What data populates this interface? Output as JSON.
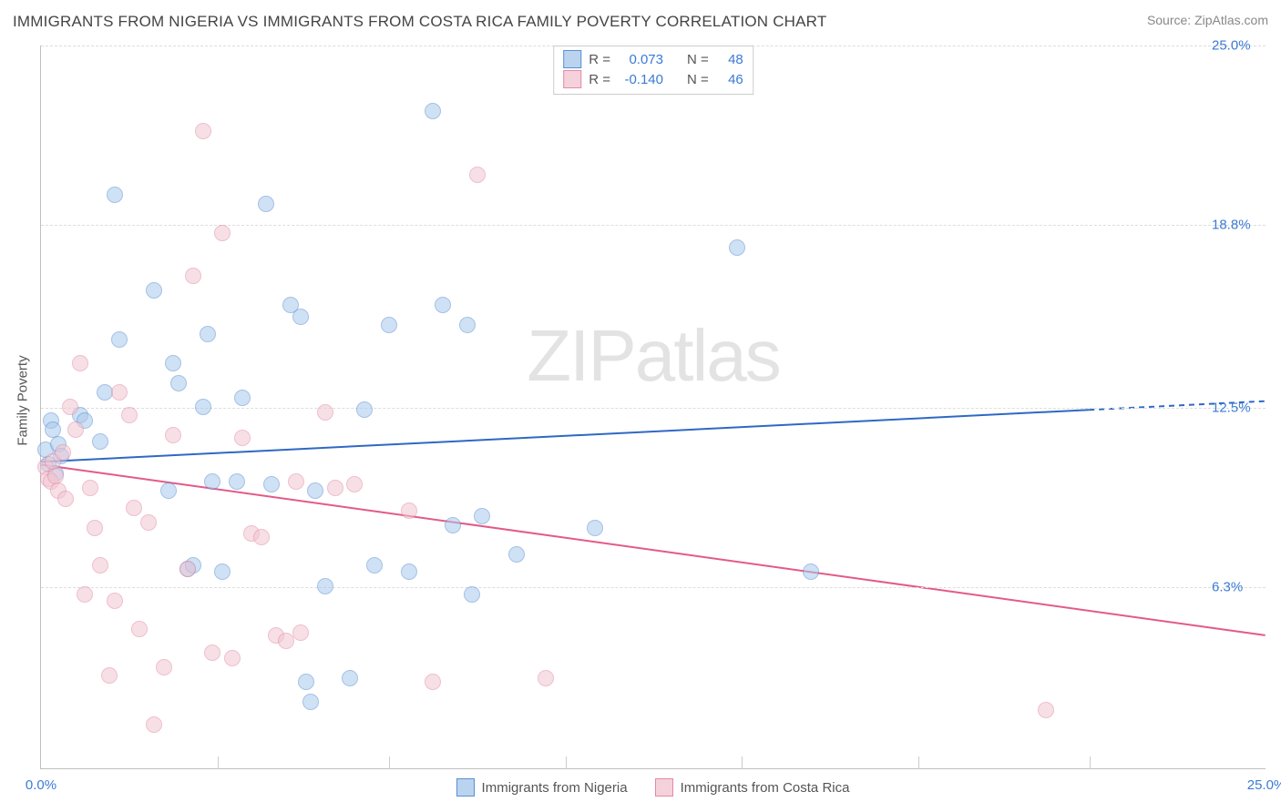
{
  "title": "IMMIGRANTS FROM NIGERIA VS IMMIGRANTS FROM COSTA RICA FAMILY POVERTY CORRELATION CHART",
  "source": "Source: ZipAtlas.com",
  "watermark": "ZIPatlas",
  "chart": {
    "ylabel": "Family Poverty",
    "xlim": [
      0,
      25
    ],
    "ylim": [
      0,
      25
    ],
    "xticks": [
      0.0,
      25.0
    ],
    "xtick_labels": [
      "0.0%",
      "25.0%"
    ],
    "yticks": [
      6.3,
      12.5,
      18.8,
      25.0
    ],
    "ytick_labels": [
      "6.3%",
      "12.5%",
      "18.8%",
      "25.0%"
    ],
    "x_minor_ticks": [
      3.6,
      7.1,
      10.7,
      14.3,
      17.9,
      21.4
    ],
    "grid_color": "#dddddd",
    "background_color": "#ffffff",
    "series": [
      {
        "name": "Immigrants from Nigeria",
        "key": "nigeria",
        "fill": "#a9c9ec",
        "stroke": "#5b8fd0",
        "fill_opacity": 0.55,
        "line_color": "#2f68c4",
        "R": "0.073",
        "N": "48",
        "trend": {
          "x0": 0,
          "y0": 10.6,
          "x1": 21.4,
          "y1": 12.4,
          "x2": 25,
          "y2": 12.7,
          "dashed_after": 21.4
        },
        "points": [
          [
            0.1,
            11.0
          ],
          [
            0.15,
            10.5
          ],
          [
            0.2,
            12.0
          ],
          [
            0.25,
            11.7
          ],
          [
            0.3,
            10.2
          ],
          [
            0.35,
            11.2
          ],
          [
            0.4,
            10.8
          ],
          [
            0.8,
            12.2
          ],
          [
            0.9,
            12.0
          ],
          [
            1.2,
            11.3
          ],
          [
            1.3,
            13.0
          ],
          [
            1.5,
            19.8
          ],
          [
            1.6,
            14.8
          ],
          [
            2.3,
            16.5
          ],
          [
            2.6,
            9.6
          ],
          [
            2.7,
            14.0
          ],
          [
            2.8,
            13.3
          ],
          [
            3.0,
            6.9
          ],
          [
            3.1,
            7.0
          ],
          [
            3.3,
            12.5
          ],
          [
            3.4,
            15.0
          ],
          [
            3.5,
            9.9
          ],
          [
            3.7,
            6.8
          ],
          [
            4.0,
            9.9
          ],
          [
            4.1,
            12.8
          ],
          [
            4.6,
            19.5
          ],
          [
            4.7,
            9.8
          ],
          [
            5.1,
            16.0
          ],
          [
            5.3,
            15.6
          ],
          [
            5.4,
            3.0
          ],
          [
            5.5,
            2.3
          ],
          [
            5.6,
            9.6
          ],
          [
            5.8,
            6.3
          ],
          [
            6.3,
            3.1
          ],
          [
            6.6,
            12.4
          ],
          [
            6.8,
            7.0
          ],
          [
            7.1,
            15.3
          ],
          [
            7.5,
            6.8
          ],
          [
            8.0,
            22.7
          ],
          [
            8.2,
            16.0
          ],
          [
            8.4,
            8.4
          ],
          [
            8.7,
            15.3
          ],
          [
            8.8,
            6.0
          ],
          [
            9.7,
            7.4
          ],
          [
            11.3,
            8.3
          ],
          [
            14.2,
            18.0
          ],
          [
            15.7,
            6.8
          ],
          [
            9.0,
            8.7
          ]
        ]
      },
      {
        "name": "Immigrants from Costa Rica",
        "key": "costarica",
        "fill": "#f2c6d2",
        "stroke": "#e38aa5",
        "fill_opacity": 0.55,
        "line_color": "#e35a87",
        "R": "-0.140",
        "N": "46",
        "trend": {
          "x0": 0,
          "y0": 10.5,
          "x1": 25,
          "y1": 4.6,
          "x2": 25,
          "y2": 4.6,
          "dashed_after": 25
        },
        "points": [
          [
            0.1,
            10.4
          ],
          [
            0.15,
            10.0
          ],
          [
            0.2,
            9.9
          ],
          [
            0.25,
            10.6
          ],
          [
            0.3,
            10.1
          ],
          [
            0.35,
            9.6
          ],
          [
            0.6,
            12.5
          ],
          [
            0.7,
            11.7
          ],
          [
            0.8,
            14.0
          ],
          [
            0.9,
            6.0
          ],
          [
            1.0,
            9.7
          ],
          [
            1.1,
            8.3
          ],
          [
            1.2,
            7.0
          ],
          [
            1.5,
            5.8
          ],
          [
            1.6,
            13.0
          ],
          [
            1.8,
            12.2
          ],
          [
            1.9,
            9.0
          ],
          [
            2.0,
            4.8
          ],
          [
            2.2,
            8.5
          ],
          [
            2.3,
            1.5
          ],
          [
            2.7,
            11.5
          ],
          [
            3.0,
            6.9
          ],
          [
            3.1,
            17.0
          ],
          [
            3.3,
            22.0
          ],
          [
            3.5,
            4.0
          ],
          [
            3.7,
            18.5
          ],
          [
            4.1,
            11.4
          ],
          [
            4.3,
            8.1
          ],
          [
            4.5,
            8.0
          ],
          [
            4.8,
            4.6
          ],
          [
            5.0,
            4.4
          ],
          [
            5.2,
            9.9
          ],
          [
            5.3,
            4.7
          ],
          [
            5.8,
            12.3
          ],
          [
            6.0,
            9.7
          ],
          [
            6.4,
            9.8
          ],
          [
            7.5,
            8.9
          ],
          [
            8.0,
            3.0
          ],
          [
            8.9,
            20.5
          ],
          [
            10.3,
            3.1
          ],
          [
            2.5,
            3.5
          ],
          [
            1.4,
            3.2
          ],
          [
            0.5,
            9.3
          ],
          [
            0.45,
            10.9
          ],
          [
            20.5,
            2.0
          ],
          [
            3.9,
            3.8
          ]
        ]
      }
    ],
    "marker_radius": 9,
    "legend_labels": [
      "Immigrants from Nigeria",
      "Immigrants from Costa Rica"
    ]
  },
  "legend_top": {
    "R_label": "R =",
    "N_label": "N ="
  }
}
